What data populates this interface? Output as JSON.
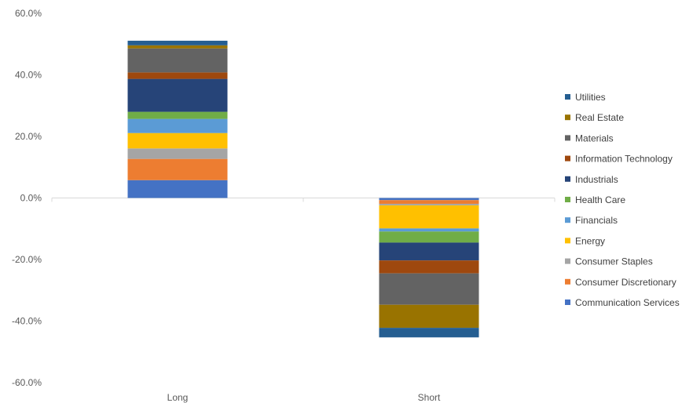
{
  "chart_data": {
    "type": "bar",
    "stacked": true,
    "categories": [
      "Long",
      "Short"
    ],
    "ylim": [
      -60,
      60
    ],
    "yticks": [
      60,
      40,
      20,
      0,
      -20,
      -40,
      -60
    ],
    "ytick_labels": [
      "60.0%",
      "40.0%",
      "20.0%",
      "0.0%",
      "-20.0%",
      "-40.0%",
      "-60.0%"
    ],
    "grid": false,
    "legend_position": "right",
    "series": [
      {
        "name": "Communication Services",
        "color": "#4472C4",
        "values": [
          5.8,
          -0.7
        ]
      },
      {
        "name": "Consumer Discretionary",
        "color": "#ED7D31",
        "values": [
          6.9,
          -1.2
        ]
      },
      {
        "name": "Consumer Staples",
        "color": "#A5A5A5",
        "values": [
          3.4,
          -0.5
        ]
      },
      {
        "name": "Energy",
        "color": "#FFC000",
        "values": [
          5.0,
          -7.5
        ]
      },
      {
        "name": "Financials",
        "color": "#5B9BD5",
        "values": [
          4.6,
          -1.0
        ]
      },
      {
        "name": "Health Care",
        "color": "#70AD47",
        "values": [
          2.3,
          -3.6
        ]
      },
      {
        "name": "Industrials",
        "color": "#264478",
        "values": [
          10.7,
          -5.8
        ]
      },
      {
        "name": "Information Technology",
        "color": "#9E480E",
        "values": [
          2.1,
          -4.2
        ]
      },
      {
        "name": "Materials",
        "color": "#636363",
        "values": [
          7.8,
          -10.2
        ]
      },
      {
        "name": "Real Estate",
        "color": "#997300",
        "values": [
          1.0,
          -7.5
        ]
      },
      {
        "name": "Utilities",
        "color": "#255E91",
        "values": [
          1.5,
          -3.1
        ]
      }
    ]
  }
}
